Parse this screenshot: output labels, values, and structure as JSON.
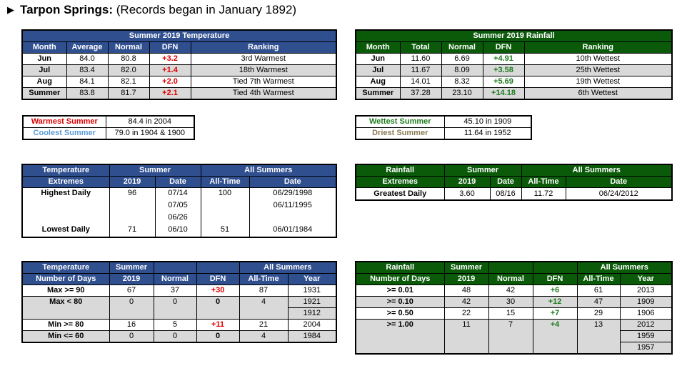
{
  "title": {
    "location": "Tarpon Springs:",
    "note": "(Records began in January 1892)"
  },
  "temp_summary": {
    "caption": "Summer 2019 Temperature",
    "headers": [
      "Month",
      "Average",
      "Normal",
      "DFN",
      "Ranking"
    ],
    "rows": [
      [
        "Jun",
        "84.0",
        "80.8",
        "+3.2",
        "3rd Warmest"
      ],
      [
        "Jul",
        "83.4",
        "82.0",
        "+1.4",
        "18th Warmest"
      ],
      [
        "Aug",
        "84.1",
        "82.1",
        "+2.0",
        "Tied 7th Warmest"
      ],
      [
        "Summer",
        "83.8",
        "81.7",
        "+2.1",
        "Tied 4th Warmest"
      ]
    ]
  },
  "rain_summary": {
    "caption": "Summer 2019 Rainfall",
    "headers": [
      "Month",
      "Total",
      "Normal",
      "DFN",
      "Ranking"
    ],
    "rows": [
      [
        "Jun",
        "11.60",
        "6.69",
        "+4.91",
        "10th Wettest"
      ],
      [
        "Jul",
        "11.67",
        "8.09",
        "+3.58",
        "25th Wettest"
      ],
      [
        "Aug",
        "14.01",
        "8.32",
        "+5.69",
        "19th Wettest"
      ],
      [
        "Summer",
        "37.28",
        "23.10",
        "+14.18",
        "6th Wettest"
      ]
    ]
  },
  "temp_records": {
    "warmest_label": "Warmest Summer",
    "warmest_value": "84.4 in 2004",
    "coolest_label": "Coolest Summer",
    "coolest_value": "79.0 in 1904 & 1900"
  },
  "rain_records": {
    "wettest_label": "Wettest Summer",
    "wettest_value": "45.10 in 1909",
    "driest_label": "Driest Summer",
    "driest_value": "11.64 in 1952"
  },
  "temp_extremes": {
    "h1": "Temperature",
    "h2": "Extremes",
    "summer": "Summer",
    "all": "All Summers",
    "col_2019": "2019",
    "col_date": "Date",
    "col_alltime": "All-Time",
    "col_date2": "Date",
    "highest_label": "Highest Daily",
    "highest_2019": "96",
    "highest_dates": [
      "07/14",
      "07/05",
      "06/26"
    ],
    "highest_alltime": "100",
    "highest_alltime_dates": [
      "06/29/1998",
      "06/11/1995"
    ],
    "lowest_label": "Lowest Daily",
    "lowest_2019": "71",
    "lowest_date": "06/10",
    "lowest_alltime": "51",
    "lowest_alltime_date": "06/01/1984"
  },
  "rain_extremes": {
    "h1": "Rainfall",
    "h2": "Extremes",
    "summer": "Summer",
    "all": "All Summers",
    "col_2019": "2019",
    "col_date": "Date",
    "col_alltime": "All-Time",
    "col_date2": "Date",
    "greatest_label": "Greatest Daily",
    "greatest_2019": "3.60",
    "greatest_date": "08/16",
    "greatest_alltime": "11.72",
    "greatest_alltime_date": "06/24/2012"
  },
  "temp_days": {
    "h1": "Temperature",
    "h2": "Number of Days",
    "summer": "Summer",
    "all": "All Summers",
    "col_2019": "2019",
    "col_normal": "Normal",
    "col_dfn": "DFN",
    "col_alltime": "All-Time",
    "col_year": "Year",
    "rows": [
      {
        "label": "Max >= 90",
        "v": "67",
        "n": "37",
        "d": "+30",
        "a": "87",
        "y": [
          "1931"
        ]
      },
      {
        "label": "Max < 80",
        "v": "0",
        "n": "0",
        "d": "0",
        "a": "4",
        "y": [
          "1921",
          "1912"
        ]
      },
      {
        "label": "Min >= 80",
        "v": "16",
        "n": "5",
        "d": "+11",
        "a": "21",
        "y": [
          "2004"
        ]
      },
      {
        "label": "Min <= 60",
        "v": "0",
        "n": "0",
        "d": "0",
        "a": "4",
        "y": [
          "1984"
        ]
      }
    ]
  },
  "rain_days": {
    "h1": "Rainfall",
    "h2": "Number of Days",
    "summer": "Summer",
    "all": "All Summers",
    "col_2019": "2019",
    "col_normal": "Normal",
    "col_dfn": "DFN",
    "col_alltime": "All-Time",
    "col_year": "Year",
    "rows": [
      {
        "label": ">= 0.01",
        "v": "48",
        "n": "42",
        "d": "+6",
        "a": "61",
        "y": [
          "2013"
        ]
      },
      {
        "label": ">= 0.10",
        "v": "42",
        "n": "30",
        "d": "+12",
        "a": "47",
        "y": [
          "1909"
        ]
      },
      {
        "label": ">= 0.50",
        "v": "22",
        "n": "15",
        "d": "+7",
        "a": "29",
        "y": [
          "1906"
        ]
      },
      {
        "label": ">= 1.00",
        "v": "11",
        "n": "7",
        "d": "+4",
        "a": "13",
        "y": [
          "2012",
          "1959",
          "1957"
        ]
      }
    ]
  }
}
